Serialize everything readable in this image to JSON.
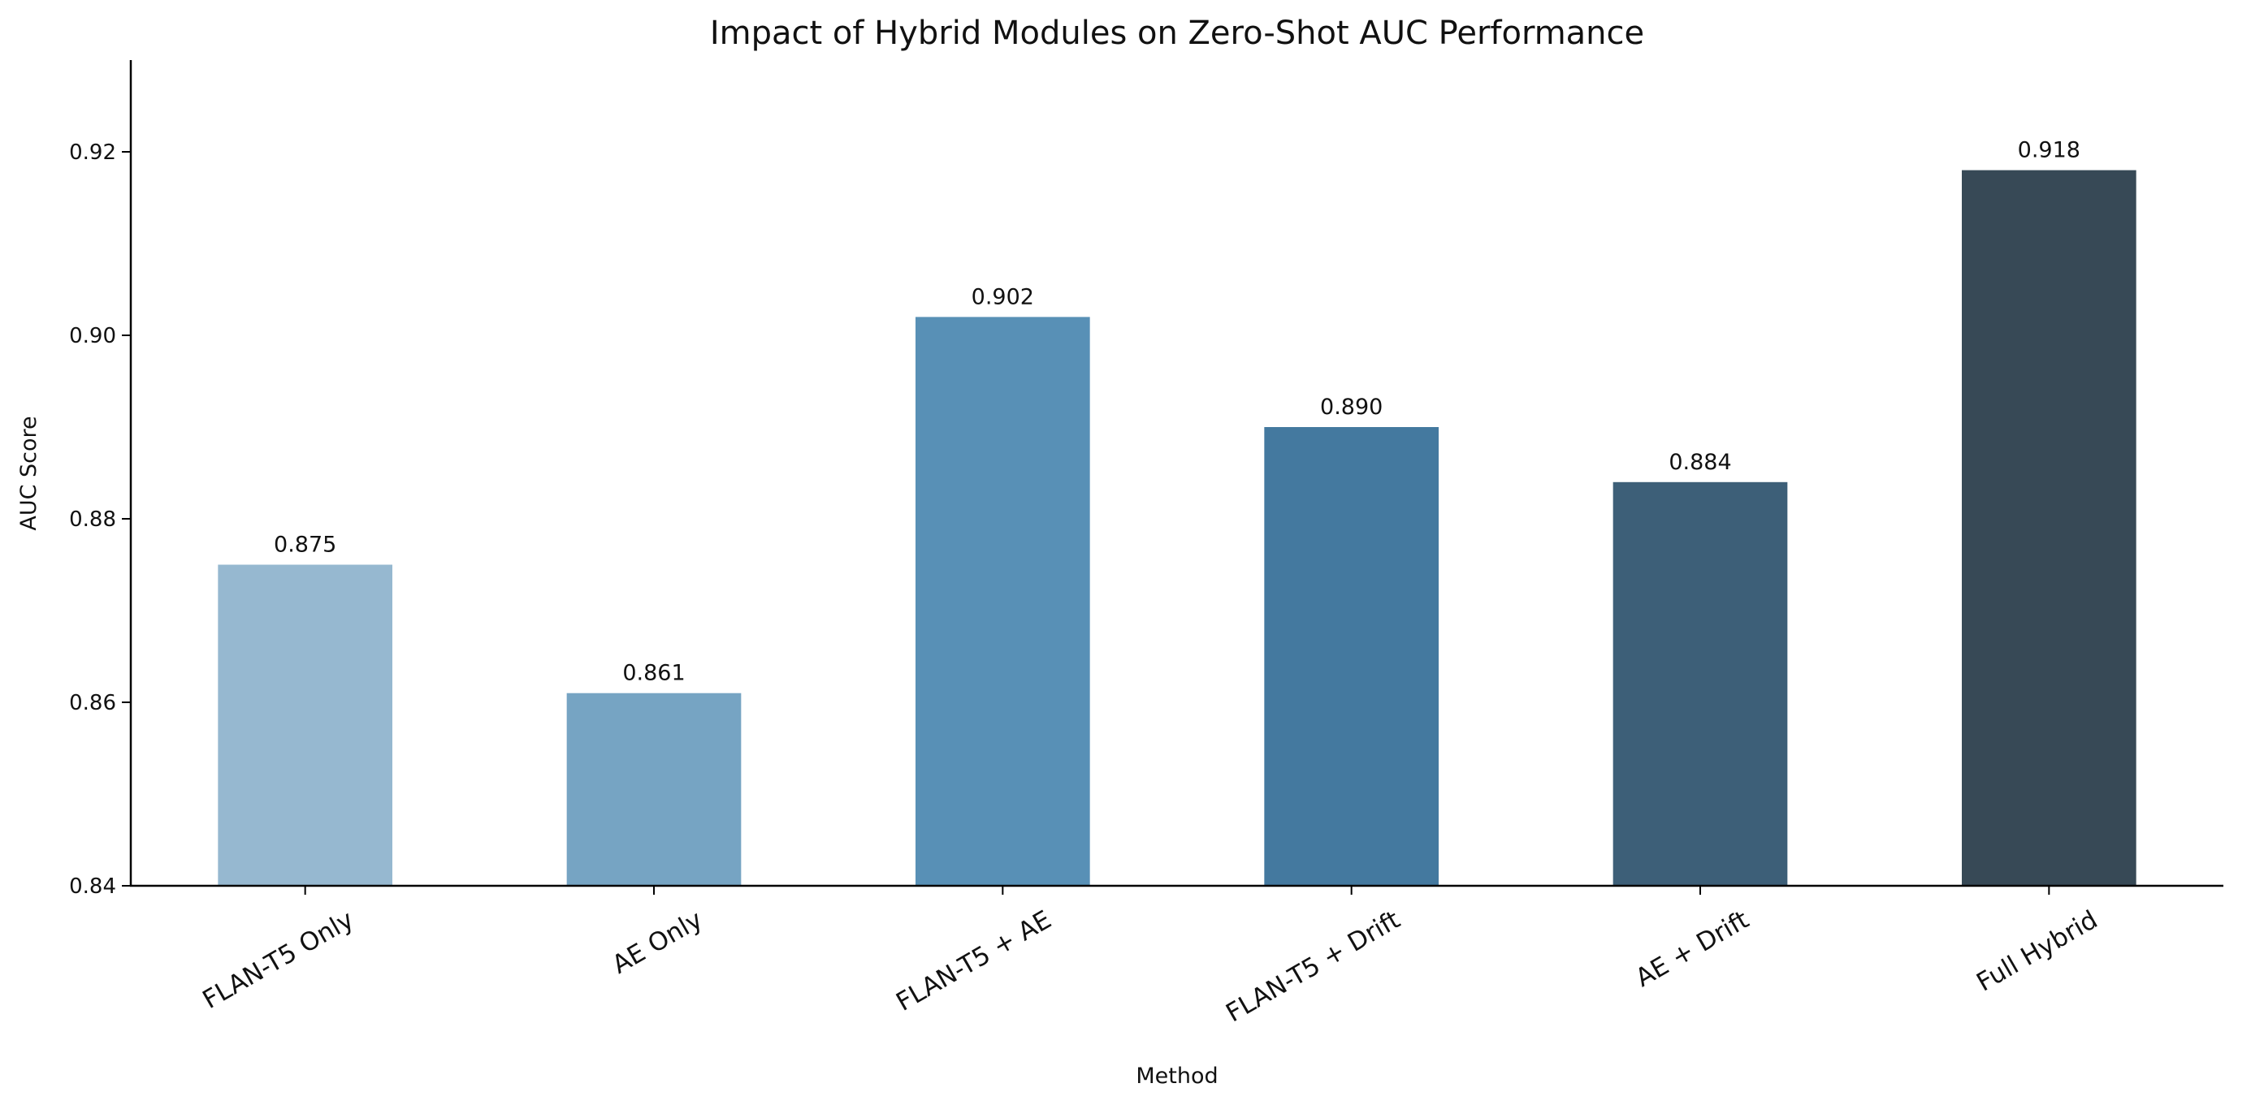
{
  "chart_data": {
    "type": "bar",
    "title": "Impact of Hybrid Modules on Zero-Shot AUC Performance",
    "xlabel": "Method",
    "ylabel": "AUC Score",
    "categories": [
      "FLAN-T5 Only",
      "AE Only",
      "FLAN-T5 + AE",
      "FLAN-T5 + Drift",
      "AE + Drift",
      "Full Hybrid"
    ],
    "values": [
      0.875,
      0.861,
      0.902,
      0.89,
      0.884,
      0.918
    ],
    "data_labels": [
      "0.875",
      "0.861",
      "0.902",
      "0.890",
      "0.884",
      "0.918"
    ],
    "colors": [
      "#96b8d0",
      "#76a4c3",
      "#5890b6",
      "#44799f",
      "#3d5f78",
      "#374956"
    ],
    "ylim": [
      0.84,
      0.93
    ],
    "yticks": [
      0.84,
      0.86,
      0.88,
      0.9,
      0.92
    ],
    "ytick_labels": [
      "0.84",
      "0.86",
      "0.88",
      "0.90",
      "0.92"
    ],
    "grid": false,
    "xtick_rotation_deg": 30
  }
}
